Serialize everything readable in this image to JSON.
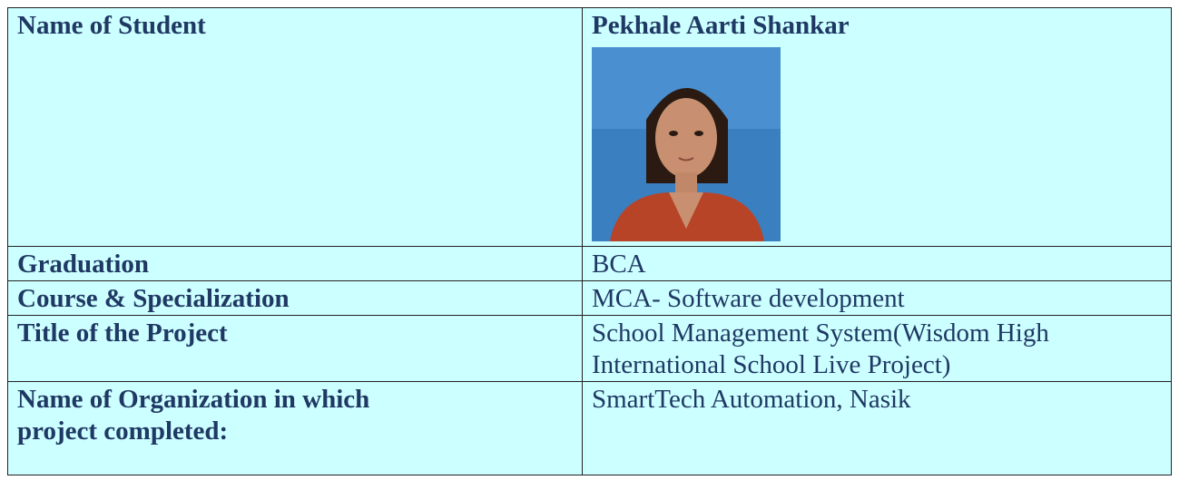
{
  "table": {
    "rows": [
      {
        "label": "Name of Student",
        "value": "Pekhale Aarti Shankar"
      },
      {
        "label": "Graduation",
        "value": "BCA"
      },
      {
        "label": "Course & Specialization",
        "value": "MCA- Software development"
      },
      {
        "label": "Title of the Project",
        "value": "School Management System(Wisdom High International School Live Project)"
      },
      {
        "label": "Name of Organization in which project completed:",
        "value": "SmartTech Automation, Nasik"
      }
    ]
  }
}
